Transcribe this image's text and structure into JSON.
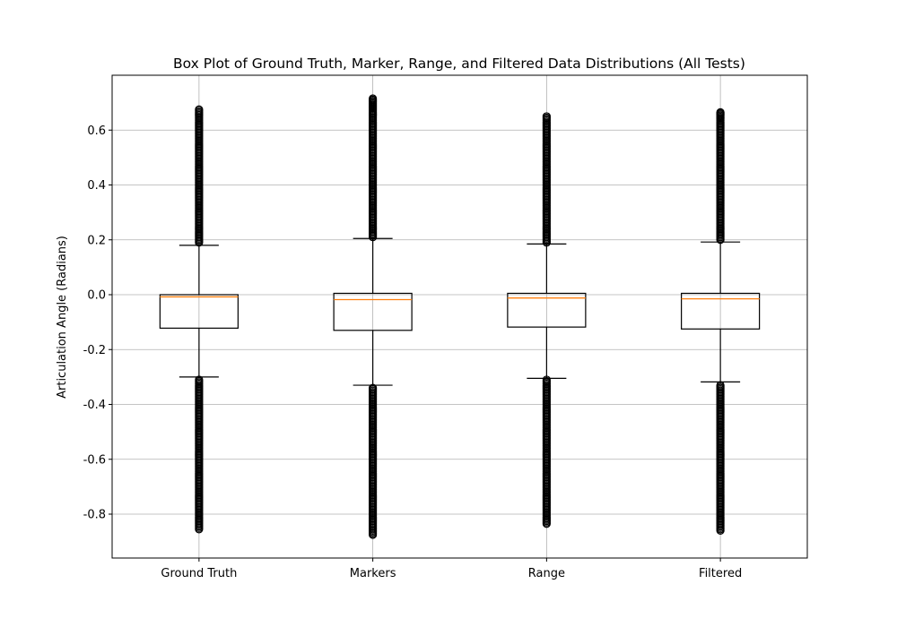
{
  "chart_data": {
    "type": "box",
    "title": "Box Plot of Ground Truth, Marker, Range, and Filtered Data Distributions (All Tests)",
    "xlabel": "",
    "ylabel": "Articulation Angle (Radians)",
    "ylim": [
      -0.96,
      0.8
    ],
    "yticks": [
      -0.8,
      -0.6,
      -0.4,
      -0.2,
      0.0,
      0.2,
      0.4,
      0.6
    ],
    "grid": true,
    "categories": [
      "Ground Truth",
      "Markers",
      "Range",
      "Filtered"
    ],
    "series": [
      {
        "category": "Ground Truth",
        "whisker_low": -0.3,
        "q1": -0.122,
        "median": -0.008,
        "q3": 0.0,
        "whisker_high": 0.18,
        "outliers_high": [
          0.19,
          0.2,
          0.21,
          0.22,
          0.24,
          0.26,
          0.28,
          0.3,
          0.32,
          0.34,
          0.36,
          0.38,
          0.4,
          0.42,
          0.44,
          0.46,
          0.48,
          0.5,
          0.52,
          0.54,
          0.56,
          0.58,
          0.6,
          0.62,
          0.64,
          0.66,
          0.675
        ],
        "outliers_low": [
          -0.31,
          -0.33,
          -0.35,
          -0.37,
          -0.39,
          -0.41,
          -0.43,
          -0.45,
          -0.47,
          -0.49,
          -0.51,
          -0.53,
          -0.55,
          -0.57,
          -0.59,
          -0.61,
          -0.63,
          -0.65,
          -0.67,
          -0.69,
          -0.71,
          -0.73,
          -0.75,
          -0.77,
          -0.79,
          -0.81,
          -0.83,
          -0.845,
          -0.855
        ]
      },
      {
        "category": "Markers",
        "whisker_low": -0.33,
        "q1": -0.13,
        "median": -0.018,
        "q3": 0.005,
        "whisker_high": 0.205,
        "outliers_high": [
          0.21,
          0.22,
          0.24,
          0.26,
          0.28,
          0.3,
          0.32,
          0.34,
          0.36,
          0.38,
          0.4,
          0.42,
          0.44,
          0.46,
          0.48,
          0.5,
          0.52,
          0.54,
          0.56,
          0.58,
          0.6,
          0.62,
          0.64,
          0.66,
          0.675,
          0.715
        ],
        "outliers_low": [
          -0.34,
          -0.36,
          -0.38,
          -0.4,
          -0.42,
          -0.44,
          -0.46,
          -0.48,
          -0.5,
          -0.52,
          -0.54,
          -0.56,
          -0.58,
          -0.6,
          -0.62,
          -0.64,
          -0.66,
          -0.68,
          -0.7,
          -0.72,
          -0.74,
          -0.76,
          -0.78,
          -0.8,
          -0.82,
          -0.84,
          -0.86,
          -0.875
        ]
      },
      {
        "category": "Range",
        "whisker_low": -0.305,
        "q1": -0.118,
        "median": -0.012,
        "q3": 0.005,
        "whisker_high": 0.185,
        "outliers_high": [
          0.19,
          0.2,
          0.22,
          0.24,
          0.26,
          0.28,
          0.3,
          0.32,
          0.34,
          0.36,
          0.38,
          0.4,
          0.42,
          0.44,
          0.46,
          0.48,
          0.5,
          0.52,
          0.54,
          0.56,
          0.58,
          0.6,
          0.62,
          0.64,
          0.65
        ],
        "outliers_low": [
          -0.31,
          -0.33,
          -0.35,
          -0.37,
          -0.39,
          -0.41,
          -0.43,
          -0.45,
          -0.47,
          -0.49,
          -0.51,
          -0.53,
          -0.55,
          -0.57,
          -0.59,
          -0.61,
          -0.63,
          -0.65,
          -0.67,
          -0.69,
          -0.71,
          -0.73,
          -0.75,
          -0.77,
          -0.79,
          -0.81,
          -0.825,
          -0.835
        ]
      },
      {
        "category": "Filtered",
        "whisker_low": -0.318,
        "q1": -0.125,
        "median": -0.015,
        "q3": 0.005,
        "whisker_high": 0.192,
        "outliers_high": [
          0.2,
          0.21,
          0.22,
          0.24,
          0.26,
          0.28,
          0.3,
          0.32,
          0.34,
          0.36,
          0.38,
          0.4,
          0.42,
          0.44,
          0.46,
          0.48,
          0.5,
          0.52,
          0.54,
          0.56,
          0.58,
          0.6,
          0.62,
          0.64,
          0.665
        ],
        "outliers_low": [
          -0.33,
          -0.35,
          -0.37,
          -0.39,
          -0.41,
          -0.43,
          -0.45,
          -0.47,
          -0.49,
          -0.51,
          -0.53,
          -0.55,
          -0.57,
          -0.59,
          -0.61,
          -0.63,
          -0.65,
          -0.67,
          -0.69,
          -0.71,
          -0.73,
          -0.75,
          -0.77,
          -0.79,
          -0.81,
          -0.83,
          -0.845,
          -0.86
        ]
      }
    ],
    "colors": {
      "box": "#000000",
      "median": "#ff7f0e",
      "grid": "#b0b0b0",
      "outlier": "#000000"
    }
  }
}
